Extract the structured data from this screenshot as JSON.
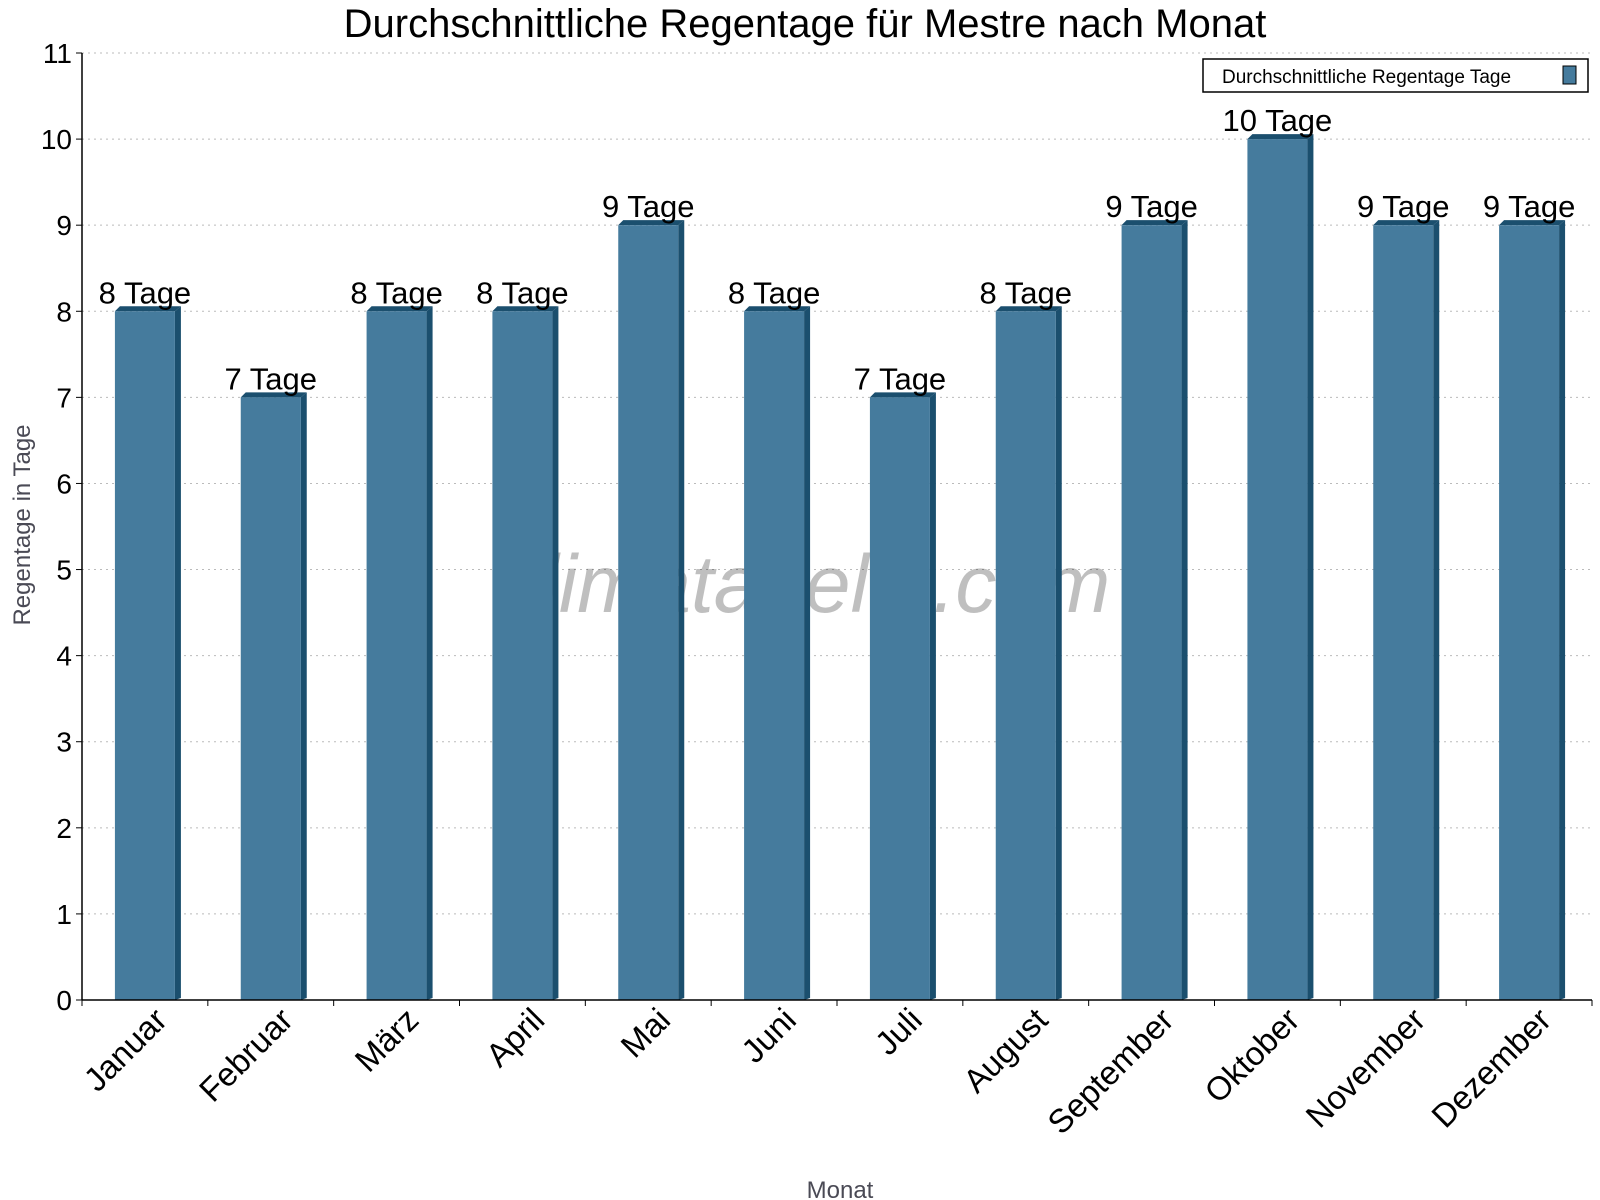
{
  "chart_data": {
    "type": "bar",
    "title": "Durchschnittliche Regentage für Mestre nach Monat",
    "xlabel": "Monat",
    "ylabel": "Regentage in Tage",
    "ylim": [
      0,
      11
    ],
    "yticks": [
      0,
      1,
      2,
      3,
      4,
      5,
      6,
      7,
      8,
      9,
      10,
      11
    ],
    "grid": true,
    "legend_position": "top-right",
    "categories": [
      "Januar",
      "Februar",
      "März",
      "April",
      "Mai",
      "Juni",
      "Juli",
      "August",
      "September",
      "Oktober",
      "November",
      "Dezember"
    ],
    "series": [
      {
        "name": "Durchschnittliche Regentage Tage",
        "values": [
          8,
          7,
          8,
          8,
          9,
          8,
          7,
          8,
          9,
          10,
          9,
          9
        ],
        "data_labels": [
          "8 Tage",
          "7 Tage",
          "8 Tage",
          "8 Tage",
          "9 Tage",
          "8 Tage",
          "7 Tage",
          "8 Tage",
          "9 Tage",
          "10 Tage",
          "9 Tage",
          "9 Tage"
        ],
        "color": "#457b9d",
        "side_color": "#1b4f6e"
      }
    ],
    "watermark": "klimatabelle.com"
  }
}
